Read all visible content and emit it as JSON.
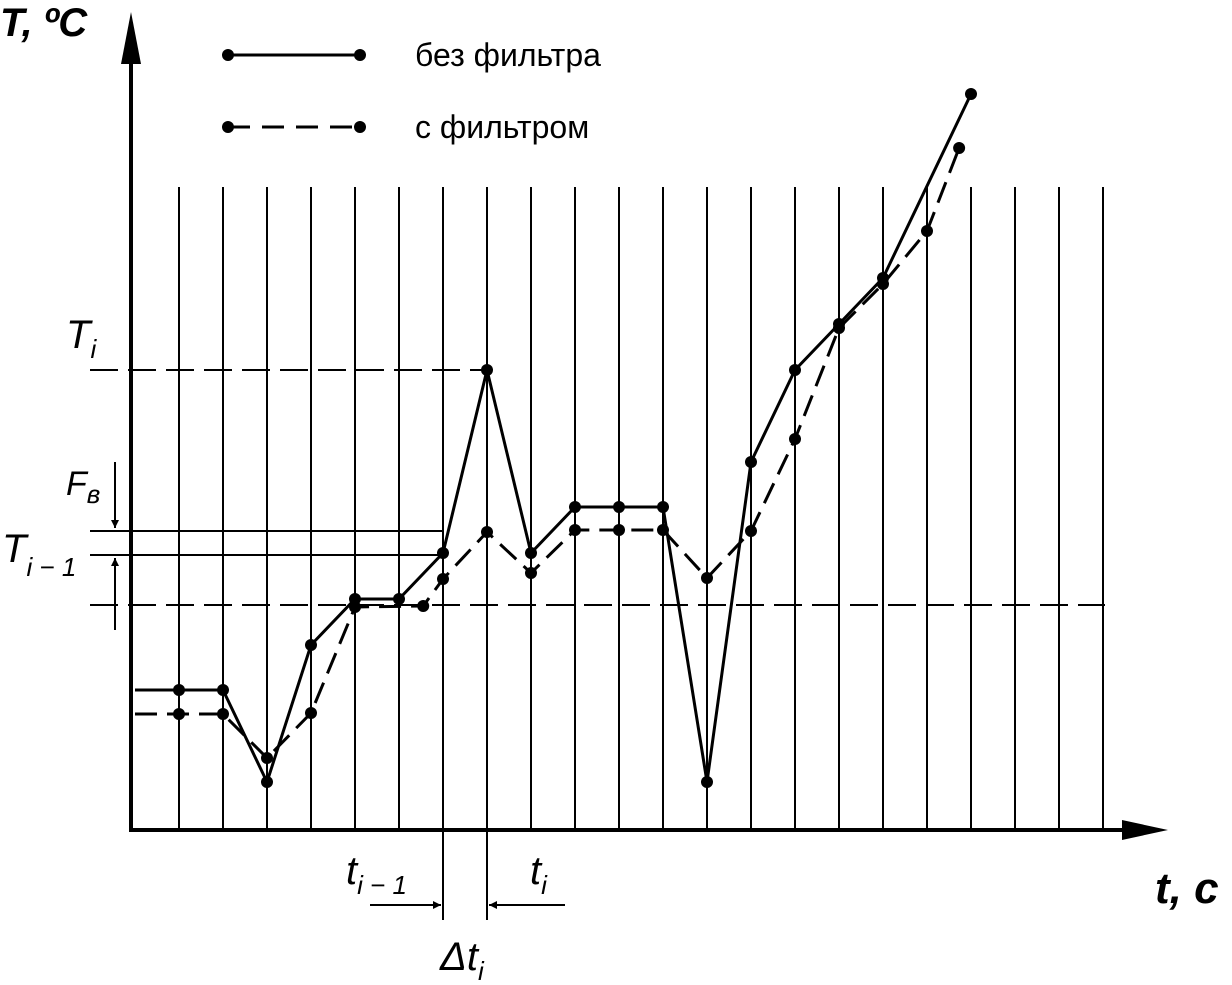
{
  "chart_data": {
    "type": "line",
    "y_label": "T, ºC",
    "x_label": "t, с",
    "xlim": [
      -0.1,
      23.5
    ],
    "ylim": [
      0,
      800
    ],
    "grid_x": [
      1,
      2,
      3,
      4,
      5,
      6,
      7,
      8,
      9,
      10,
      11,
      12,
      13,
      14,
      15,
      16,
      17,
      18,
      19,
      20,
      21,
      22
    ],
    "color": "#000000",
    "series": [
      {
        "name": "без фильтра",
        "dash": false,
        "x": [
          0,
          1,
          2,
          3,
          4,
          5,
          6,
          7,
          8,
          9,
          10,
          11,
          12,
          13,
          14,
          15,
          16,
          17,
          19
        ],
        "values": [
          140,
          140,
          140,
          48,
          185,
          231,
          231,
          277,
          460,
          277,
          323,
          323,
          323,
          48,
          368,
          460,
          506,
          552,
          736
        ]
      },
      {
        "name": "с фильтром",
        "dash": true,
        "x": [
          0,
          1,
          2,
          3,
          4,
          5,
          6.55,
          7,
          8,
          9,
          10,
          11,
          12,
          13,
          14,
          15,
          16,
          17,
          18,
          18.73
        ],
        "values": [
          116,
          116,
          116,
          72,
          117,
          223,
          224,
          251,
          298,
          257,
          300,
          300,
          300,
          252,
          299,
          391,
          502,
          546,
          599,
          682
        ]
      }
    ],
    "annotations": [
      {
        "text": "T",
        "sub": "i"
      },
      {
        "text": "F",
        "sub": "в"
      },
      {
        "text": "T",
        "sub": "i − 1"
      },
      {
        "text": "t",
        "sub": "i − 1"
      },
      {
        "text": "t",
        "sub": "i"
      },
      {
        "text": "Δt",
        "sub": "i"
      }
    ]
  }
}
